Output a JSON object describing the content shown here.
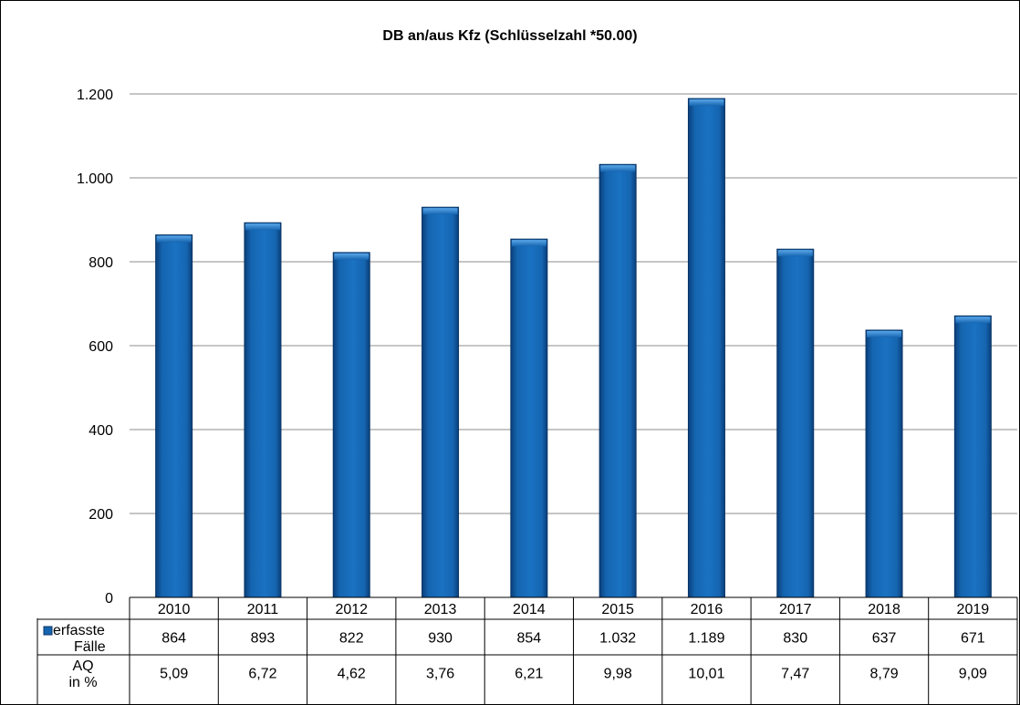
{
  "chart_data": {
    "type": "bar",
    "title": "DB an/aus Kfz (Schlüsselzahl *50.00)",
    "categories": [
      "2010",
      "2011",
      "2012",
      "2013",
      "2014",
      "2015",
      "2016",
      "2017",
      "2018",
      "2019"
    ],
    "ylim": [
      0,
      1200
    ],
    "yticks": [
      0,
      200,
      400,
      600,
      800,
      1000,
      1200
    ],
    "ytick_labels": [
      "0",
      "200",
      "400",
      "600",
      "800",
      "1.000",
      "1.200"
    ],
    "grid": true,
    "series": [
      {
        "name": "erfasste Fälle",
        "legend_lines": [
          "erfasste",
          "Fälle"
        ],
        "color": "#1565b0",
        "values": [
          864,
          893,
          822,
          930,
          854,
          1032,
          1189,
          830,
          637,
          671
        ],
        "value_labels": [
          "864",
          "893",
          "822",
          "930",
          "854",
          "1.032",
          "1.189",
          "830",
          "637",
          "671"
        ]
      }
    ],
    "table_rows": [
      {
        "label_lines": [
          "AQ",
          "in %"
        ],
        "values": [
          "5,09",
          "6,72",
          "4,62",
          "3,76",
          "6,21",
          "9,98",
          "10,01",
          "7,47",
          "8,79",
          "9,09"
        ]
      }
    ]
  }
}
